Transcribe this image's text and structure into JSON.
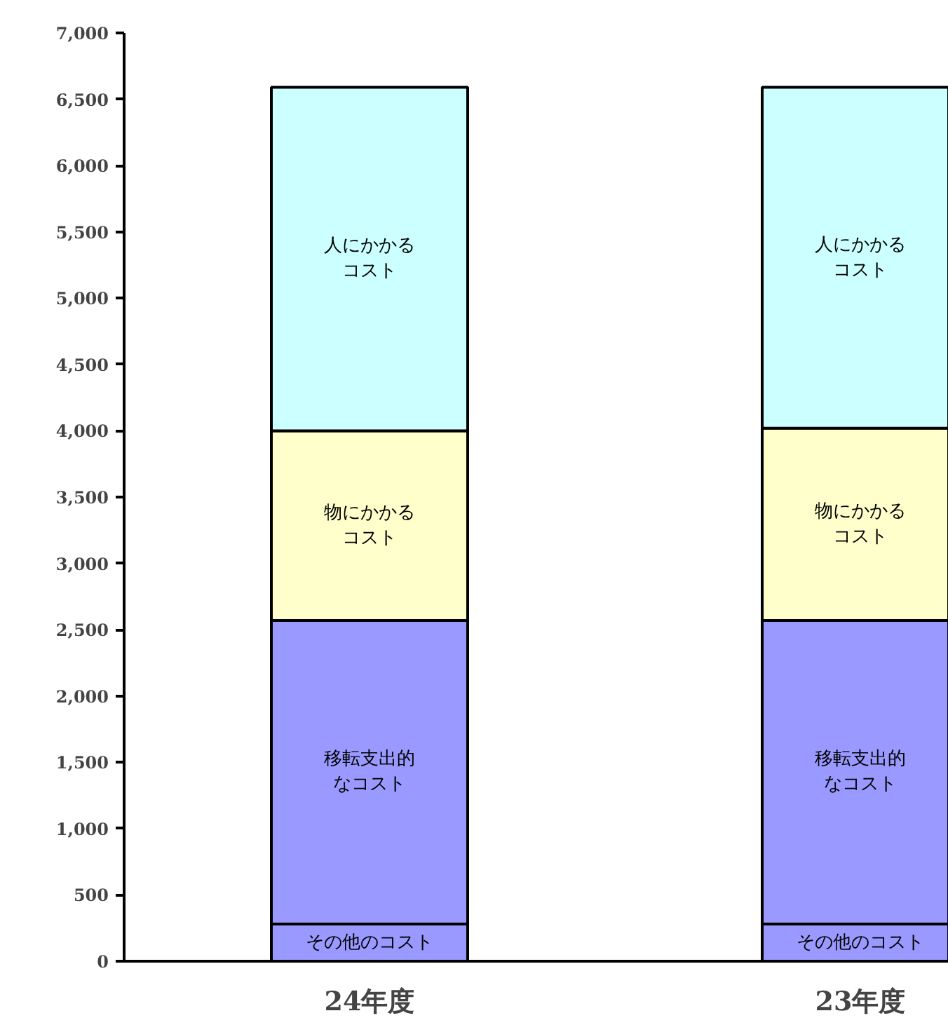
{
  "chart_data": {
    "type": "bar",
    "stacked": true,
    "categories": [
      "24年度",
      "23年度"
    ],
    "series": [
      {
        "name": "その他のコスト",
        "color": "#9999ff",
        "values": [
          280,
          280
        ]
      },
      {
        "name": "移転支出的なコスト",
        "color": "#9999ff",
        "values": [
          2290,
          2290
        ]
      },
      {
        "name": "物にかかるコスト",
        "color": "#ffffcc",
        "values": [
          1430,
          1450
        ]
      },
      {
        "name": "人にかかるコスト",
        "color": "#ccffff",
        "values": [
          2590,
          2570
        ]
      }
    ],
    "ylim": [
      0,
      7000
    ],
    "yticks": [
      0,
      {
        "value": 500,
        "label": "500"
      },
      {
        "value": 1000,
        "label": "1,000"
      },
      {
        "value": 1500,
        "label": "1,500"
      },
      {
        "value": 2000,
        "label": "2,000"
      },
      {
        "value": 2500,
        "label": "2,500"
      },
      {
        "value": 3000,
        "label": "3,000"
      },
      {
        "value": 3500,
        "label": "3,500"
      },
      {
        "value": 4000,
        "label": "4,000"
      },
      {
        "value": 4500,
        "label": "4,500"
      },
      {
        "value": 5000,
        "label": "5,000"
      },
      {
        "value": 5500,
        "label": "5,500"
      },
      {
        "value": 6000,
        "label": "6,000"
      },
      {
        "value": 6500,
        "label": "6,500"
      },
      {
        "value": 7000,
        "label": "7,000"
      }
    ],
    "grid": false
  }
}
